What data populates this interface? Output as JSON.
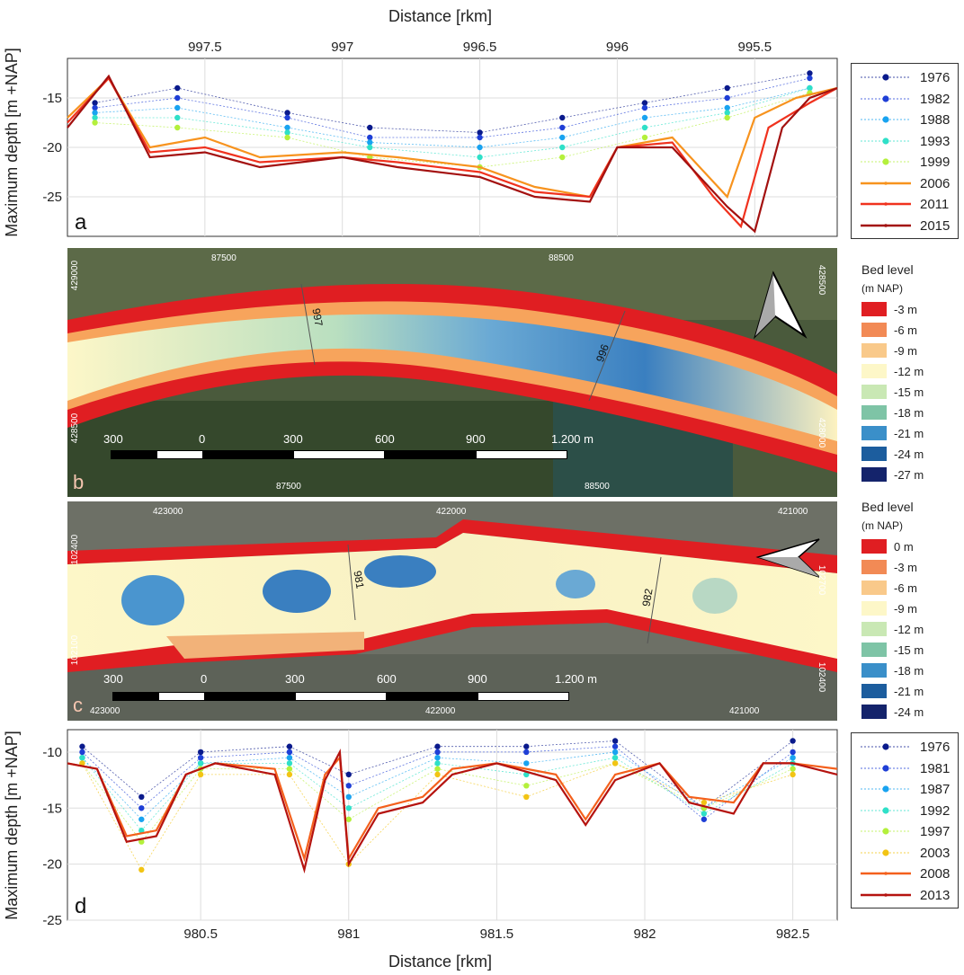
{
  "panel_a": {
    "letter": "a",
    "top_axis_title": "Distance [rkm]",
    "left_axis_title": "Maximum depth [m +NAP]",
    "chart_data": {
      "type": "line",
      "x_ticks": [
        "997.5",
        "997",
        "996.5",
        "996",
        "995.5"
      ],
      "x_tick_values": [
        997.5,
        997.0,
        996.5,
        996.0,
        995.5
      ],
      "x_range": [
        998.0,
        995.2
      ],
      "x_reversed": true,
      "y_ticks": [
        "-15",
        "-20",
        "-25"
      ],
      "y_tick_values": [
        -15,
        -20,
        -25
      ],
      "ylim": [
        -29,
        -11
      ],
      "grid": true,
      "legend_position": "right",
      "series": [
        {
          "name": "1976",
          "color": "#0a1a8c",
          "style": "dots",
          "x": [
            997.9,
            997.6,
            997.2,
            996.9,
            996.5,
            996.2,
            995.9,
            995.6,
            995.3
          ],
          "values": [
            -15.5,
            -14,
            -16.5,
            -18,
            -18.5,
            -17,
            -15.5,
            -14,
            -12.5
          ]
        },
        {
          "name": "1982",
          "color": "#1f3fd6",
          "style": "dots",
          "x": [
            997.9,
            997.6,
            997.2,
            996.9,
            996.5,
            996.2,
            995.9,
            995.6,
            995.3
          ],
          "values": [
            -16,
            -15,
            -17,
            -19,
            -19,
            -18,
            -16,
            -15,
            -13
          ]
        },
        {
          "name": "1988",
          "color": "#19a3f0",
          "style": "dots",
          "x": [
            997.9,
            997.6,
            997.2,
            996.9,
            996.5,
            996.2,
            995.9,
            995.6,
            995.3
          ],
          "values": [
            -16.5,
            -16,
            -18,
            -19.5,
            -20,
            -19,
            -17,
            -16,
            -14
          ]
        },
        {
          "name": "1993",
          "color": "#2fe0c8",
          "style": "dots",
          "x": [
            997.9,
            997.6,
            997.2,
            996.9,
            996.5,
            996.2,
            995.9,
            995.6,
            995.3
          ],
          "values": [
            -17,
            -17,
            -18.5,
            -20,
            -21,
            -20,
            -18,
            -16.5,
            -14
          ]
        },
        {
          "name": "1999",
          "color": "#b4f03c",
          "style": "dots",
          "x": [
            997.9,
            997.6,
            997.2,
            996.9,
            996.5,
            996.2,
            995.9,
            995.6,
            995.3
          ],
          "values": [
            -17.5,
            -18,
            -19,
            -21,
            -22,
            -21,
            -19,
            -17,
            -14.5
          ]
        },
        {
          "name": "2006",
          "color": "#f7931e",
          "style": "line",
          "x": [
            998.0,
            997.85,
            997.7,
            997.5,
            997.3,
            997.0,
            996.8,
            996.5,
            996.3,
            996.1,
            996.0,
            995.8,
            995.7,
            995.6,
            995.5,
            995.35,
            995.2
          ],
          "values": [
            -17,
            -13,
            -20,
            -19,
            -21,
            -20.5,
            -21,
            -22,
            -24,
            -25,
            -20,
            -19,
            -22,
            -25,
            -17,
            -15,
            -14
          ]
        },
        {
          "name": "2011",
          "color": "#f0321e",
          "style": "line",
          "x": [
            998.0,
            997.85,
            997.7,
            997.5,
            997.3,
            997.0,
            996.8,
            996.5,
            996.3,
            996.1,
            996.0,
            995.8,
            995.65,
            995.55,
            995.45,
            995.3,
            995.2
          ],
          "values": [
            -17.5,
            -13,
            -20.5,
            -20,
            -21.5,
            -21,
            -21.5,
            -22.5,
            -24.5,
            -25,
            -20,
            -19.5,
            -25,
            -28,
            -18,
            -15.5,
            -14
          ]
        },
        {
          "name": "2015",
          "color": "#a3100f",
          "style": "line",
          "x": [
            998.0,
            997.85,
            997.7,
            997.5,
            997.3,
            997.0,
            996.8,
            996.5,
            996.3,
            996.1,
            996.0,
            995.8,
            995.6,
            995.5,
            995.4,
            995.3,
            995.2
          ],
          "values": [
            -18,
            -12.8,
            -21,
            -20.5,
            -22,
            -21,
            -22,
            -23,
            -25,
            -25.5,
            -20,
            -20,
            -26,
            -28.5,
            -18,
            -15,
            -14
          ]
        }
      ]
    }
  },
  "panel_b": {
    "letter": "b",
    "grid_labels_top": [
      "87500",
      "88500"
    ],
    "grid_labels_bottom": [
      "87500",
      "88500"
    ],
    "grid_labels_left": [
      "429000",
      "428500"
    ],
    "grid_labels_right": [
      "428500",
      "428000"
    ],
    "km_labels": [
      "997",
      "996"
    ],
    "scale_labels": [
      "300",
      "0",
      "300",
      "600",
      "900",
      "1.200 m"
    ],
    "north_arrow": "north-arrow-icon",
    "colorbar": {
      "title_line1": "Bed level",
      "title_line2": "(m NAP)",
      "labels": [
        "-3 m",
        "-6 m",
        "-9 m",
        "-12 m",
        "-15 m",
        "-18 m",
        "-21 m",
        "-24 m",
        "-27 m"
      ],
      "colors": [
        "#e01e22",
        "#f28a55",
        "#f9c98a",
        "#fdf7c8",
        "#c9e8b4",
        "#7ec4a6",
        "#3a8fc9",
        "#1c5d9e",
        "#14236b"
      ]
    }
  },
  "panel_c": {
    "letter": "c",
    "grid_labels_top": [
      "423000",
      "422000",
      "421000"
    ],
    "grid_labels_bottom": [
      "423000",
      "422000",
      "421000"
    ],
    "grid_labels_left": [
      "102400",
      "102100"
    ],
    "grid_labels_right": [
      "102700",
      "102400"
    ],
    "km_labels": [
      "981",
      "982"
    ],
    "scale_labels": [
      "300",
      "0",
      "300",
      "600",
      "900",
      "1.200 m"
    ],
    "north_arrow": "north-arrow-icon",
    "colorbar": {
      "title_line1": "Bed level",
      "title_line2": "(m NAP)",
      "labels": [
        "0 m",
        "-3 m",
        "-6 m",
        "-9 m",
        "-12 m",
        "-15 m",
        "-18 m",
        "-21 m",
        "-24 m"
      ],
      "colors": [
        "#e01e22",
        "#f28a55",
        "#f9c98a",
        "#fdf7c8",
        "#c9e8b4",
        "#7ec4a6",
        "#3a8fc9",
        "#1c5d9e",
        "#14236b"
      ]
    }
  },
  "panel_d": {
    "letter": "d",
    "bottom_axis_title": "Distance [rkm]",
    "left_axis_title": "Maximum depth [m +NAP]",
    "chart_data": {
      "type": "line",
      "x_ticks": [
        "980.5",
        "981",
        "981.5",
        "982",
        "982.5"
      ],
      "x_tick_values": [
        980.5,
        981.0,
        981.5,
        982.0,
        982.5
      ],
      "x_range": [
        980.05,
        982.65
      ],
      "y_ticks": [
        "-10",
        "-15",
        "-20",
        "-25"
      ],
      "y_tick_values": [
        -10,
        -15,
        -20,
        -25
      ],
      "ylim": [
        -25,
        -8
      ],
      "grid": true,
      "legend_position": "right",
      "series": [
        {
          "name": "1976",
          "color": "#0a1a8c",
          "style": "dots",
          "x": [
            980.1,
            980.3,
            980.5,
            980.8,
            981.0,
            981.3,
            981.6,
            981.9,
            982.2,
            982.5
          ],
          "values": [
            -9.5,
            -14,
            -10,
            -9.5,
            -12,
            -9.5,
            -9.5,
            -9,
            -15,
            -9
          ]
        },
        {
          "name": "1981",
          "color": "#1f3fd6",
          "style": "dots",
          "x": [
            980.1,
            980.3,
            980.5,
            980.8,
            981.0,
            981.3,
            981.6,
            981.9,
            982.2,
            982.5
          ],
          "values": [
            -10,
            -15,
            -10.5,
            -10,
            -13,
            -10,
            -10,
            -9.5,
            -16,
            -10
          ]
        },
        {
          "name": "1987",
          "color": "#19a3f0",
          "style": "dots",
          "x": [
            980.1,
            980.3,
            980.5,
            980.8,
            981.0,
            981.3,
            981.6,
            981.9,
            982.2,
            982.5
          ],
          "values": [
            -10.5,
            -16,
            -11,
            -10.5,
            -14,
            -10.5,
            -11,
            -10,
            -15,
            -10.5
          ]
        },
        {
          "name": "1992",
          "color": "#2fe0c8",
          "style": "dots",
          "x": [
            980.1,
            980.3,
            980.5,
            980.8,
            981.0,
            981.3,
            981.6,
            981.9,
            982.2,
            982.5
          ],
          "values": [
            -10.5,
            -17,
            -11,
            -11,
            -15,
            -11,
            -12,
            -10.5,
            -15.5,
            -11
          ]
        },
        {
          "name": "1997",
          "color": "#b4f03c",
          "style": "dots",
          "x": [
            980.1,
            980.3,
            980.5,
            980.8,
            981.0,
            981.3,
            981.6,
            981.9,
            982.2,
            982.5
          ],
          "values": [
            -11,
            -18,
            -11.5,
            -11.5,
            -16,
            -11.5,
            -13,
            -11,
            -15,
            -11.5
          ]
        },
        {
          "name": "2003",
          "color": "#f2c414",
          "style": "dots",
          "x": [
            980.1,
            980.3,
            980.5,
            980.8,
            981.0,
            981.3,
            981.6,
            981.9,
            982.2,
            982.5
          ],
          "values": [
            -11,
            -20.5,
            -12,
            -12,
            -20,
            -12,
            -14,
            -11,
            -14.5,
            -12
          ]
        },
        {
          "name": "2008",
          "color": "#f4601c",
          "style": "line",
          "x": [
            980.05,
            980.15,
            980.25,
            980.35,
            980.45,
            980.55,
            980.75,
            980.85,
            980.92,
            980.97,
            981.0,
            981.1,
            981.25,
            981.35,
            981.5,
            981.7,
            981.8,
            981.9,
            982.05,
            982.15,
            982.3,
            982.4,
            982.5,
            982.65
          ],
          "values": [
            -11,
            -11.5,
            -17.5,
            -17,
            -12,
            -11,
            -11.5,
            -19.5,
            -12,
            -10.5,
            -19.5,
            -15,
            -14,
            -11.5,
            -11,
            -12,
            -16,
            -12,
            -11,
            -14,
            -14.5,
            -11,
            -11,
            -11.5
          ]
        },
        {
          "name": "2013",
          "color": "#b5130f",
          "style": "line",
          "x": [
            980.05,
            980.15,
            980.25,
            980.35,
            980.45,
            980.55,
            980.75,
            980.85,
            980.92,
            980.97,
            981.0,
            981.1,
            981.25,
            981.35,
            981.5,
            981.7,
            981.8,
            981.9,
            982.05,
            982.15,
            982.3,
            982.4,
            982.5,
            982.65
          ],
          "values": [
            -11,
            -11.5,
            -18,
            -17.5,
            -12,
            -11,
            -12,
            -20.5,
            -12.5,
            -10,
            -20,
            -15.5,
            -14.5,
            -12,
            -11,
            -12.5,
            -16.5,
            -12.5,
            -11,
            -14.5,
            -15.5,
            -11,
            -11,
            -12
          ]
        }
      ]
    }
  }
}
